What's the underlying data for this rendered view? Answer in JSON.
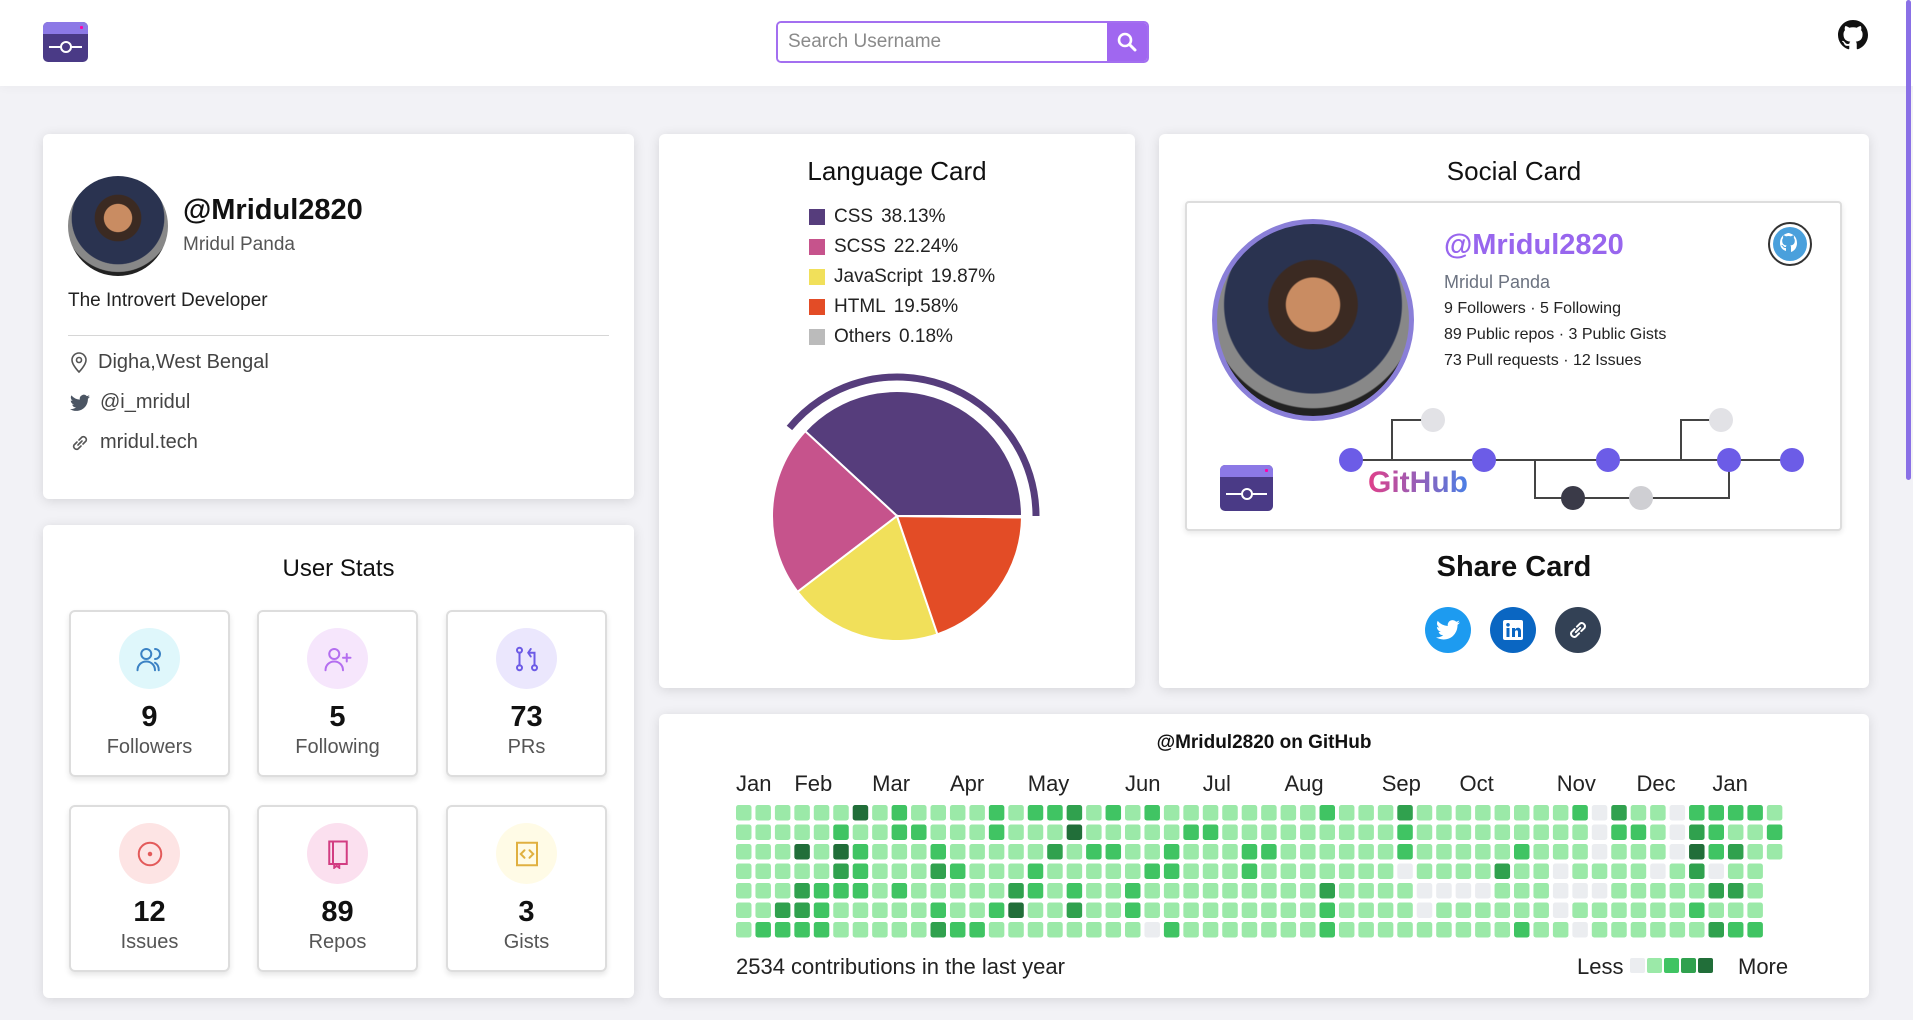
{
  "header": {
    "search_placeholder": "Search Username",
    "search_icon": "search-icon",
    "github_icon": "github-icon"
  },
  "profile": {
    "username": "@Mridul2820",
    "name": "Mridul Panda",
    "bio": "The Introvert Developer",
    "location": "Digha,West Bengal",
    "twitter": "@i_mridul",
    "website": "mridul.tech"
  },
  "user_stats": {
    "title": "User Stats",
    "items": [
      {
        "value": "9",
        "label": "Followers",
        "icon": "users-icon",
        "color": "#3b82c4",
        "bg": "#dff7fb"
      },
      {
        "value": "5",
        "label": "Following",
        "icon": "user-plus-icon",
        "color": "#b46ef0",
        "bg": "#f6e6fc"
      },
      {
        "value": "73",
        "label": "PRs",
        "icon": "pull-request-icon",
        "color": "#6d5be6",
        "bg": "#ebe7fd"
      },
      {
        "value": "12",
        "label": "Issues",
        "icon": "issue-icon",
        "color": "#e35a5a",
        "bg": "#fde4e4"
      },
      {
        "value": "89",
        "label": "Repos",
        "icon": "repo-icon",
        "color": "#d23d82",
        "bg": "#fbe0ef"
      },
      {
        "value": "3",
        "label": "Gists",
        "icon": "code-icon",
        "color": "#e0b040",
        "bg": "#fffbe6"
      }
    ]
  },
  "language_card": {
    "title": "Language Card"
  },
  "chart_data": {
    "type": "pie",
    "title": "Language Card",
    "categories": [
      "CSS",
      "SCSS",
      "JavaScript",
      "HTML",
      "Others"
    ],
    "values": [
      38.13,
      22.24,
      19.87,
      19.58,
      0.18
    ],
    "labels": [
      "38.13%",
      "22.24%",
      "19.87%",
      "19.58%",
      "0.18%"
    ],
    "colors": [
      "#563d7c",
      "#c6538c",
      "#f1e05a",
      "#e34c26",
      "#bbbbbb"
    ],
    "highlighted": "CSS",
    "legend": "top"
  },
  "social_card": {
    "title": "Social Card",
    "username": "@Mridul2820",
    "name": "Mridul Panda",
    "line1": [
      "9 Followers",
      "5 Following"
    ],
    "line2": [
      "89 Public repos",
      "3 Public Gists"
    ],
    "line3": [
      "73 Pull requests",
      "12 Issues"
    ],
    "separator": "·",
    "github_word": "GitHub",
    "share_title": "Share Card",
    "share_buttons": [
      {
        "icon": "twitter-icon",
        "color": "#1d9bf0"
      },
      {
        "icon": "linkedin-icon",
        "color": "#0a66c2"
      },
      {
        "icon": "link-icon",
        "color": "#334155"
      }
    ]
  },
  "contributions": {
    "title": "@Mridul2820 on GitHub",
    "months": [
      "Jan",
      "Feb",
      "Mar",
      "Apr",
      "May",
      "Jun",
      "Jul",
      "Aug",
      "Sep",
      "Oct",
      "Nov",
      "Dec",
      "Jan"
    ],
    "total_text": "2534 contributions in the last year",
    "less": "Less",
    "more": "More",
    "level_colors": [
      "#ebedf0",
      "#9be9a8",
      "#40c463",
      "#30a14e",
      "#216e39"
    ],
    "levels_by_weekday": [
      "111111412111121223121211111111211131111111120311022221",
      "111112112211121114111112211111111121111111110221032112",
      "111414211121111131221121112211111121111121110111042311",
      "11111321113211121111122111211111110111131101111013011",
      "11132221211111321211211111111131111000011100011111331",
      "11332111112112411311211111111121111011111101111112111",
      "12222111113221111111102111111121111111112110111111322"
    ]
  }
}
